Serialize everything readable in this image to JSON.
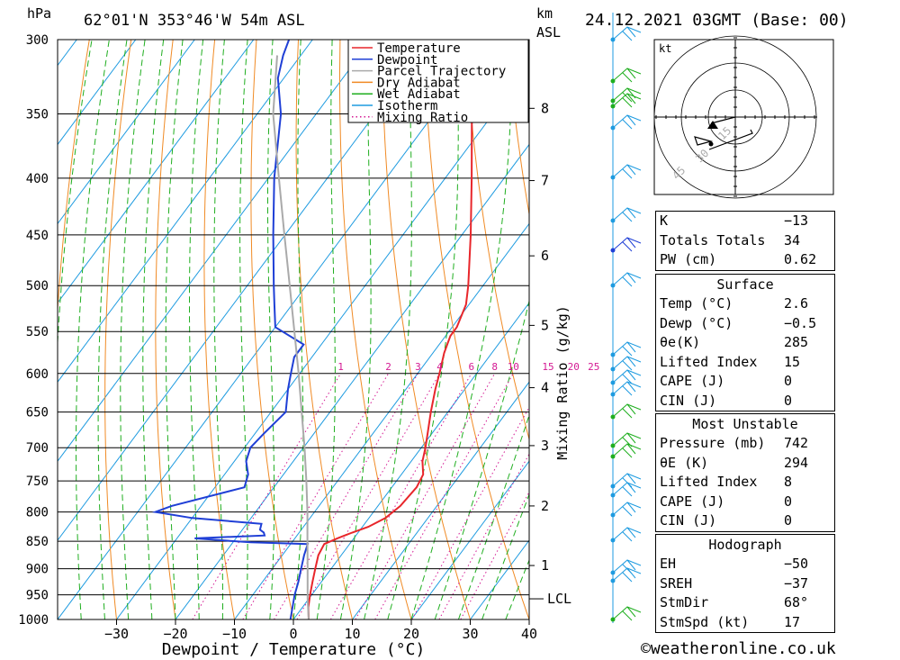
{
  "header": {
    "pressure_unit": "hPa",
    "location": "62°01'N 353°46'W 54m ASL",
    "km_label": "km",
    "asl_label": "ASL",
    "datetime": "24.12.2021 03GMT (Base: 00)"
  },
  "chart_data": {
    "type": "line",
    "chart_kind": "skew-T log-P diagram",
    "xlabel": "Dewpoint / Temperature (°C)",
    "ylabel_left": "hPa",
    "ylabel_mixing": "Mixing Ratio (g/kg)",
    "x_ticks": [
      -30,
      -20,
      -10,
      0,
      10,
      20,
      30,
      40
    ],
    "x_tick_labels": [
      "−30",
      "−20",
      "−10",
      "0",
      "10",
      "20",
      "30",
      "40"
    ],
    "xlim": [
      -40,
      40
    ],
    "pressure_levels": [
      300,
      350,
      400,
      450,
      500,
      550,
      600,
      650,
      700,
      750,
      800,
      850,
      900,
      950,
      1000
    ],
    "ylim": [
      300,
      1000
    ],
    "y_scale": "log",
    "km_ticks": [
      {
        "km": "8",
        "p": 346
      },
      {
        "km": "7",
        "p": 402
      },
      {
        "km": "6",
        "p": 470
      },
      {
        "km": "5",
        "p": 543
      },
      {
        "km": "4",
        "p": 618
      },
      {
        "km": "3",
        "p": 697
      },
      {
        "km": "2",
        "p": 790
      },
      {
        "km": "1",
        "p": 894
      }
    ],
    "lcl": {
      "label": "LCL",
      "p": 958
    },
    "mixing_ratio_labels": [
      {
        "label": "1",
        "w": 1
      },
      {
        "label": "2",
        "w": 2
      },
      {
        "label": "3",
        "w": 3
      },
      {
        "label": "4",
        "w": 4
      },
      {
        "label": "6",
        "w": 6
      },
      {
        "label": "8",
        "w": 8
      },
      {
        "label": "10",
        "w": 10
      },
      {
        "label": "15",
        "w": 15
      },
      {
        "label": "20",
        "w": 20
      },
      {
        "label": "25",
        "w": 25
      }
    ],
    "legend": {
      "placement": "top-right",
      "entries": [
        {
          "name": "Temperature",
          "color": "#e8262b",
          "style": "solid"
        },
        {
          "name": "Dewpoint",
          "color": "#1f3fd6",
          "style": "solid"
        },
        {
          "name": "Parcel Trajectory",
          "color": "#aaaaaa",
          "style": "solid"
        },
        {
          "name": "Dry Adiabat",
          "color": "#f08a24",
          "style": "solid"
        },
        {
          "name": "Wet Adiabat",
          "color": "#1fae1f",
          "style": "solid"
        },
        {
          "name": "Isotherm",
          "color": "#1e9be0",
          "style": "solid"
        },
        {
          "name": "Mixing Ratio",
          "color": "#d41a93",
          "style": "dotted"
        }
      ]
    },
    "series": [
      {
        "name": "Temperature",
        "color": "#e8262b",
        "points": [
          [
            1000,
            2.6
          ],
          [
            975,
            1.0
          ],
          [
            950,
            -0.3
          ],
          [
            925,
            -1.5
          ],
          [
            900,
            -2.7
          ],
          [
            875,
            -3.9
          ],
          [
            855,
            -4.3
          ],
          [
            845,
            -2.8
          ],
          [
            835,
            -1.0
          ],
          [
            825,
            1.0
          ],
          [
            810,
            2.8
          ],
          [
            790,
            3.8
          ],
          [
            760,
            4.2
          ],
          [
            740,
            3.7
          ],
          [
            720,
            1.9
          ],
          [
            700,
            0.7
          ],
          [
            680,
            -0.7
          ],
          [
            650,
            -2.9
          ],
          [
            620,
            -5.0
          ],
          [
            600,
            -6.3
          ],
          [
            575,
            -8.1
          ],
          [
            555,
            -9.2
          ],
          [
            545,
            -9.2
          ],
          [
            520,
            -10.5
          ],
          [
            500,
            -12.5
          ],
          [
            450,
            -18.5
          ],
          [
            400,
            -25.5
          ],
          [
            350,
            -33.6
          ],
          [
            325,
            -38.5
          ],
          [
            310,
            -40.8
          ],
          [
            300,
            -41.2
          ]
        ]
      },
      {
        "name": "Dewpoint",
        "color": "#1f3fd6",
        "points": [
          [
            1000,
            -0.5
          ],
          [
            975,
            -1.7
          ],
          [
            950,
            -2.9
          ],
          [
            925,
            -3.9
          ],
          [
            900,
            -5.1
          ],
          [
            875,
            -6.3
          ],
          [
            855,
            -7.1
          ],
          [
            852,
            -17
          ],
          [
            845,
            -27
          ],
          [
            840,
            -15.5
          ],
          [
            835,
            -16
          ],
          [
            830,
            -17
          ],
          [
            820,
            -17.5
          ],
          [
            810,
            -30
          ],
          [
            800,
            -37
          ],
          [
            790,
            -35
          ],
          [
            760,
            -25
          ],
          [
            740,
            -26
          ],
          [
            720,
            -28
          ],
          [
            700,
            -29
          ],
          [
            680,
            -28.5
          ],
          [
            650,
            -27.5
          ],
          [
            620,
            -30
          ],
          [
            600,
            -31.5
          ],
          [
            580,
            -33
          ],
          [
            565,
            -33
          ],
          [
            545,
            -40
          ],
          [
            520,
            -43
          ],
          [
            500,
            -45.5
          ],
          [
            450,
            -52
          ],
          [
            400,
            -59
          ],
          [
            350,
            -66
          ],
          [
            325,
            -71
          ],
          [
            310,
            -73
          ],
          [
            300,
            -74
          ]
        ]
      },
      {
        "name": "Parcel Trajectory",
        "color": "#aaaaaa",
        "points": [
          [
            1000,
            2.6
          ],
          [
            958,
            -0.2
          ],
          [
            900,
            -4.0
          ],
          [
            850,
            -7.5
          ],
          [
            800,
            -11.2
          ],
          [
            750,
            -15.3
          ],
          [
            700,
            -19.8
          ],
          [
            650,
            -24.8
          ],
          [
            600,
            -30.2
          ],
          [
            550,
            -36.2
          ],
          [
            500,
            -42.8
          ],
          [
            450,
            -50.1
          ],
          [
            400,
            -58.2
          ],
          [
            350,
            -67.3
          ],
          [
            310,
            -74.0
          ]
        ]
      }
    ],
    "grid": true
  },
  "hodograph": {
    "unit": "kt",
    "ring_labels": [
      "15",
      "30",
      "45"
    ]
  },
  "indices": {
    "block1": [
      {
        "label": "K",
        "value": "−13"
      },
      {
        "label": "Totals Totals",
        "value": "34"
      },
      {
        "label": "PW (cm)",
        "value": "0.62"
      }
    ],
    "surface": {
      "title": "Surface",
      "rows": [
        {
          "label": "Temp (°C)",
          "value": "2.6"
        },
        {
          "label": "Dewp (°C)",
          "value": "−0.5"
        },
        {
          "label": "θe(K)",
          "value": "285"
        },
        {
          "label": "Lifted Index",
          "value": "15"
        },
        {
          "label": "CAPE (J)",
          "value": "0"
        },
        {
          "label": "CIN (J)",
          "value": "0"
        }
      ]
    },
    "most_unstable": {
      "title": "Most Unstable",
      "rows": [
        {
          "label": "Pressure (mb)",
          "value": "742"
        },
        {
          "label": "θE (K)",
          "value": "294"
        },
        {
          "label": "Lifted Index",
          "value": "8"
        },
        {
          "label": "CAPE (J)",
          "value": "0"
        },
        {
          "label": "CIN (J)",
          "value": "0"
        }
      ]
    },
    "hodograph_block": {
      "title": "Hodograph",
      "rows": [
        {
          "label": "EH",
          "value": "−50"
        },
        {
          "label": "SREH",
          "value": "−37"
        },
        {
          "label": "StmDir",
          "value": "68°"
        },
        {
          "label": "StmSpd (kt)",
          "value": "17"
        }
      ]
    }
  },
  "footer": "©weatheronline.co.uk"
}
